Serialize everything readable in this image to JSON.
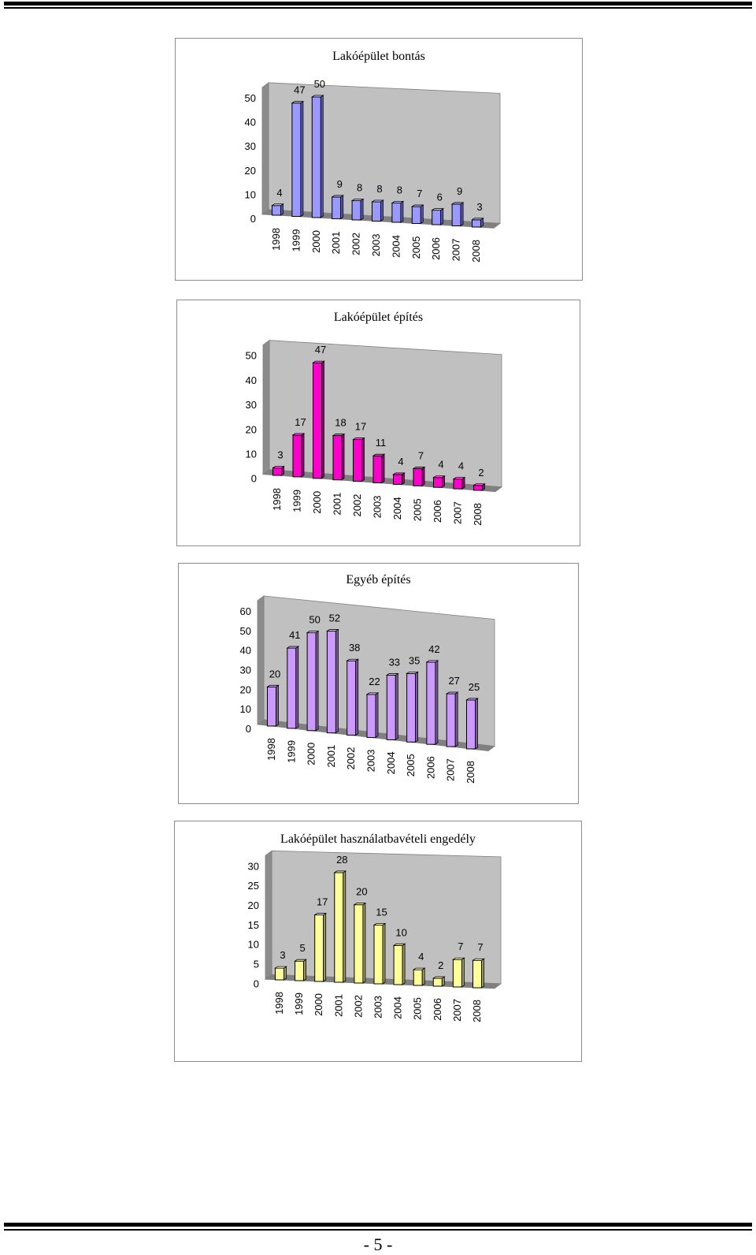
{
  "page": {
    "page_number": "- 5 -"
  },
  "chart_data": [
    {
      "type": "bar",
      "title": "Lakóépület bontás",
      "categories": [
        "1998",
        "1999",
        "2000",
        "2001",
        "2002",
        "2003",
        "2004",
        "2005",
        "2006",
        "2007",
        "2008"
      ],
      "values": [
        4,
        47,
        50,
        9,
        8,
        8,
        8,
        7,
        6,
        9,
        3
      ],
      "yticks": [
        "0",
        "10",
        "20",
        "30",
        "40",
        "50"
      ],
      "ylim": [
        0,
        50
      ],
      "color": "#9999ff",
      "side_color": "#5a5ab4",
      "top_color": "#c4c4ff",
      "grid": false,
      "legend": "none",
      "style": "3d-column"
    },
    {
      "type": "bar",
      "title": "Lakóépület építés",
      "categories": [
        "1998",
        "1999",
        "2000",
        "2001",
        "2002",
        "2003",
        "2004",
        "2005",
        "2006",
        "2007",
        "2008"
      ],
      "values": [
        3,
        17,
        47,
        18,
        17,
        11,
        4,
        7,
        4,
        4,
        2
      ],
      "yticks": [
        "0",
        "10",
        "20",
        "30",
        "40",
        "50"
      ],
      "ylim": [
        0,
        50
      ],
      "color": "#ff00cc",
      "side_color": "#99007a",
      "top_color": "#ff66dd",
      "grid": false,
      "legend": "none",
      "style": "3d-column"
    },
    {
      "type": "bar",
      "title": "Egyéb építés",
      "categories": [
        "1998",
        "1999",
        "2000",
        "2001",
        "2002",
        "2003",
        "2004",
        "2005",
        "2006",
        "2007",
        "2008"
      ],
      "values": [
        20,
        41,
        50,
        52,
        38,
        22,
        33,
        35,
        42,
        27,
        25
      ],
      "yticks": [
        "0",
        "10",
        "20",
        "30",
        "40",
        "50",
        "60"
      ],
      "ylim": [
        0,
        60
      ],
      "color": "#cc99ff",
      "side_color": "#7a5c99",
      "top_color": "#e0c2ff",
      "grid": false,
      "legend": "none",
      "style": "3d-column"
    },
    {
      "type": "bar",
      "title": "Lakóépület használatbavételi engedély",
      "categories": [
        "1998",
        "1999",
        "2000",
        "2001",
        "2002",
        "2003",
        "2004",
        "2005",
        "2006",
        "2007",
        "2008"
      ],
      "values": [
        3,
        5,
        17,
        28,
        20,
        15,
        10,
        4,
        2,
        7,
        7
      ],
      "yticks": [
        "0",
        "5",
        "10",
        "15",
        "20",
        "25",
        "30"
      ],
      "ylim": [
        0,
        30
      ],
      "color": "#ffff99",
      "side_color": "#999966",
      "top_color": "#ffffcc",
      "grid": false,
      "legend": "none",
      "style": "3d-column"
    }
  ]
}
